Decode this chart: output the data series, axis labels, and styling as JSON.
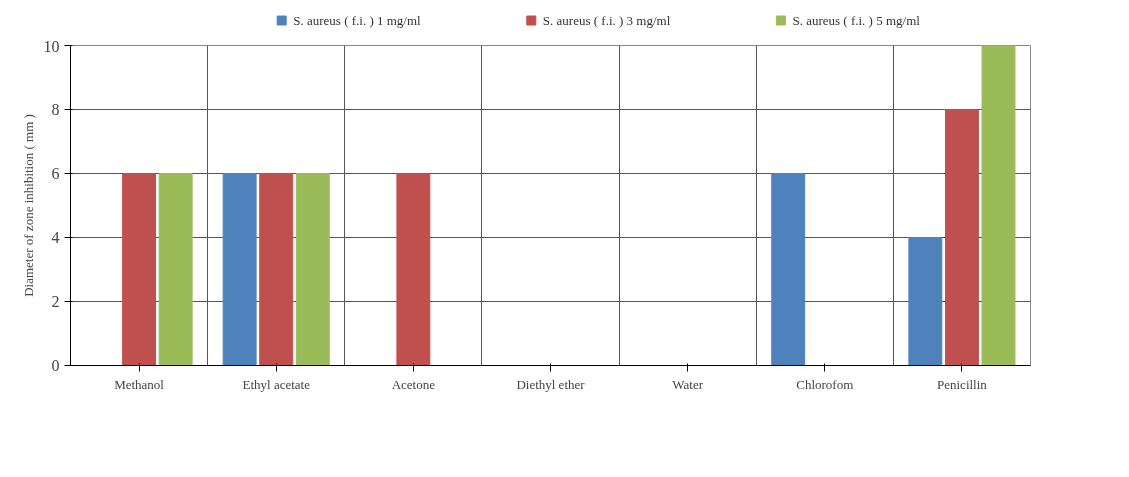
{
  "chart_data": {
    "type": "bar",
    "ylabel": "Diameter of zone inhibition ( mm )",
    "categories": [
      "Methanol",
      "Ethyl acetate",
      "Acetone",
      "Diethyl ether",
      "Water",
      "Chlorofom",
      "Penicillin"
    ],
    "series": [
      {
        "name": "S. aureus ( f.i. ) 1 mg/ml",
        "color": "#4f81bd",
        "values": [
          0,
          6,
          0,
          0,
          0,
          6,
          4
        ]
      },
      {
        "name": "S. aureus ( f.i. ) 3 mg/ml",
        "color": "#c0504d",
        "values": [
          6,
          6,
          6,
          0,
          0,
          0,
          8
        ]
      },
      {
        "name": "S. aureus ( f.i. ) 5 mg/ml",
        "color": "#9bbb59",
        "values": [
          6,
          6,
          0,
          0,
          0,
          0,
          10
        ]
      }
    ],
    "ylim": [
      0,
      10
    ],
    "yticks": [
      0,
      2,
      4,
      6,
      8,
      10
    ],
    "grid": true,
    "legend": "top"
  }
}
